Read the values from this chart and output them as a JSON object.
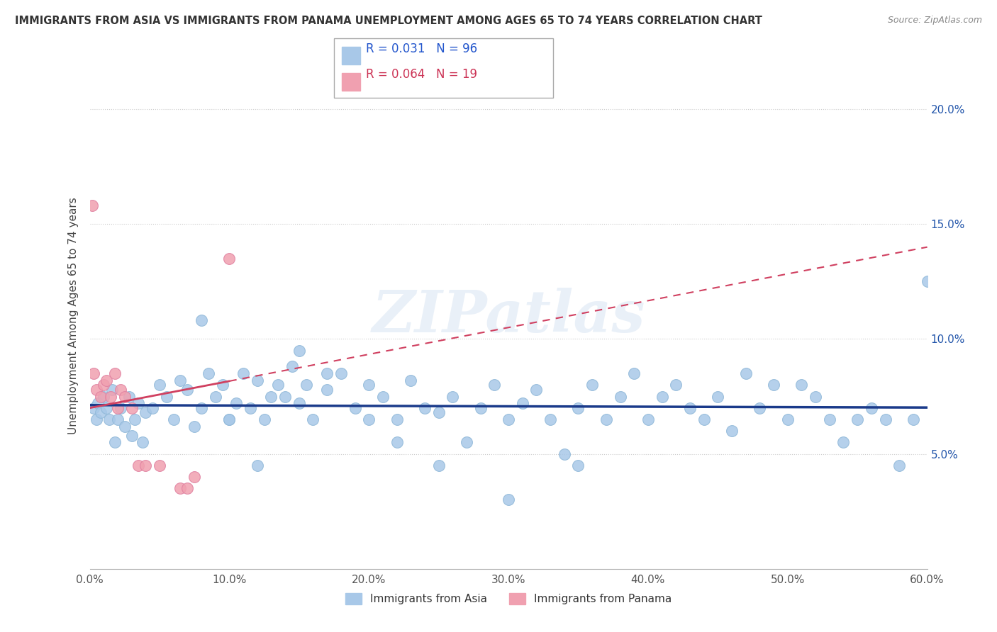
{
  "title": "IMMIGRANTS FROM ASIA VS IMMIGRANTS FROM PANAMA UNEMPLOYMENT AMONG AGES 65 TO 74 YEARS CORRELATION CHART",
  "source": "Source: ZipAtlas.com",
  "ylabel": "Unemployment Among Ages 65 to 74 years",
  "xlabel_ticks": [
    "0.0%",
    "10.0%",
    "20.0%",
    "30.0%",
    "40.0%",
    "50.0%",
    "60.0%"
  ],
  "xlabel_vals": [
    0.0,
    10.0,
    20.0,
    30.0,
    40.0,
    50.0,
    60.0
  ],
  "ylabel_ticks": [
    "5.0%",
    "10.0%",
    "15.0%",
    "20.0%"
  ],
  "ylabel_vals": [
    5.0,
    10.0,
    15.0,
    20.0
  ],
  "xlim": [
    0,
    60
  ],
  "ylim": [
    0,
    22
  ],
  "R_asia": 0.031,
  "N_asia": 96,
  "R_panama": 0.064,
  "N_panama": 19,
  "color_asia": "#a8c8e8",
  "color_panama": "#f0a0b0",
  "trendline_asia_color": "#1a3a8a",
  "trendline_panama_color": "#d04060",
  "watermark": "ZIPatlas",
  "asia_x": [
    0.3,
    0.5,
    0.6,
    0.8,
    1.0,
    1.2,
    1.4,
    1.6,
    1.8,
    2.0,
    2.2,
    2.5,
    2.8,
    3.0,
    3.2,
    3.5,
    3.8,
    4.0,
    4.5,
    5.0,
    5.5,
    6.0,
    6.5,
    7.0,
    7.5,
    8.0,
    8.5,
    9.0,
    9.5,
    10.0,
    10.5,
    11.0,
    11.5,
    12.0,
    12.5,
    13.0,
    13.5,
    14.0,
    14.5,
    15.0,
    15.5,
    16.0,
    17.0,
    18.0,
    19.0,
    20.0,
    21.0,
    22.0,
    23.0,
    24.0,
    25.0,
    26.0,
    27.0,
    28.0,
    29.0,
    30.0,
    31.0,
    32.0,
    33.0,
    34.0,
    35.0,
    36.0,
    37.0,
    38.0,
    39.0,
    40.0,
    41.0,
    42.0,
    43.0,
    44.0,
    45.0,
    46.0,
    47.0,
    48.0,
    49.0,
    50.0,
    51.0,
    52.0,
    53.0,
    54.0,
    55.0,
    56.0,
    57.0,
    58.0,
    59.0,
    60.0,
    15.0,
    17.0,
    8.0,
    25.0,
    30.0,
    35.0,
    10.0,
    12.0,
    20.0,
    22.0
  ],
  "asia_y": [
    7.0,
    6.5,
    7.2,
    6.8,
    7.5,
    7.0,
    6.5,
    7.8,
    5.5,
    6.5,
    7.0,
    6.2,
    7.5,
    5.8,
    6.5,
    7.2,
    5.5,
    6.8,
    7.0,
    8.0,
    7.5,
    6.5,
    8.2,
    7.8,
    6.2,
    7.0,
    8.5,
    7.5,
    8.0,
    6.5,
    7.2,
    8.5,
    7.0,
    8.2,
    6.5,
    7.5,
    8.0,
    7.5,
    8.8,
    7.2,
    8.0,
    6.5,
    7.8,
    8.5,
    7.0,
    8.0,
    7.5,
    6.5,
    8.2,
    7.0,
    6.8,
    7.5,
    5.5,
    7.0,
    8.0,
    6.5,
    7.2,
    7.8,
    6.5,
    5.0,
    7.0,
    8.0,
    6.5,
    7.5,
    8.5,
    6.5,
    7.5,
    8.0,
    7.0,
    6.5,
    7.5,
    6.0,
    8.5,
    7.0,
    8.0,
    6.5,
    8.0,
    7.5,
    6.5,
    5.5,
    6.5,
    7.0,
    6.5,
    4.5,
    6.5,
    12.5,
    9.5,
    8.5,
    10.8,
    4.5,
    3.0,
    4.5,
    6.5,
    4.5,
    6.5,
    5.5
  ],
  "panama_x": [
    0.2,
    0.3,
    0.5,
    0.8,
    1.0,
    1.2,
    1.5,
    1.8,
    2.0,
    2.2,
    2.5,
    3.0,
    3.5,
    4.0,
    5.0,
    6.5,
    7.5,
    10.0,
    7.0
  ],
  "panama_y": [
    15.8,
    8.5,
    7.8,
    7.5,
    8.0,
    8.2,
    7.5,
    8.5,
    7.0,
    7.8,
    7.5,
    7.0,
    4.5,
    4.5,
    4.5,
    3.5,
    4.0,
    13.5,
    3.5
  ]
}
